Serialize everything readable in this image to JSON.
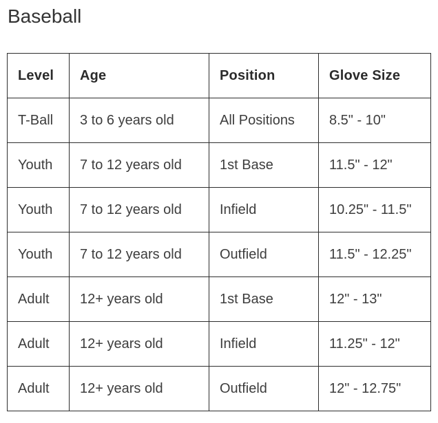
{
  "title": "Baseball",
  "colors": {
    "background": "#ffffff",
    "title_text": "#333333",
    "header_text": "#2b2b2b",
    "cell_text": "#3d3d3d",
    "border": "#2d2d2d"
  },
  "table": {
    "columns": [
      "Level",
      "Age",
      "Position",
      "Glove Size"
    ],
    "rows": [
      [
        "T-Ball",
        "3 to 6 years old",
        "All Positions",
        "8.5\" - 10\""
      ],
      [
        "Youth",
        "7 to 12 years old",
        "1st Base",
        "11.5\" - 12\""
      ],
      [
        "Youth",
        "7 to 12 years old",
        "Infield",
        "10.25\" - 11.5\""
      ],
      [
        "Youth",
        "7 to 12 years old",
        "Outfield",
        "11.5\" - 12.25\""
      ],
      [
        "Adult",
        "12+ years old",
        "1st Base",
        "12\" - 13\""
      ],
      [
        "Adult",
        "12+ years old",
        "Infield",
        "11.25\" - 12\""
      ],
      [
        "Adult",
        "12+ years old",
        "Outfield",
        "12\" - 12.75\""
      ]
    ]
  }
}
